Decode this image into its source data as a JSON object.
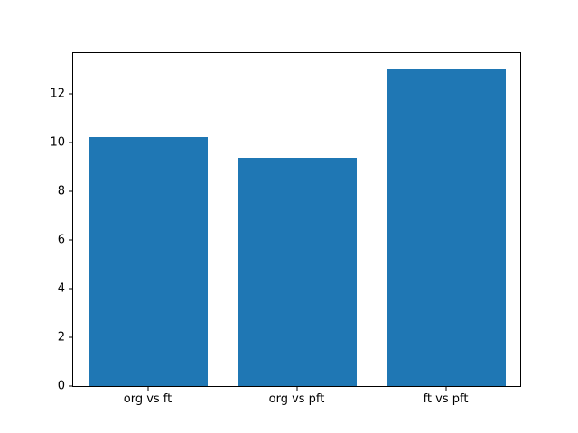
{
  "chart_data": {
    "type": "bar",
    "categories": [
      "org vs ft",
      "org vs pft",
      "ft vs pft"
    ],
    "values": [
      10.2,
      9.35,
      13.0
    ],
    "title": "",
    "xlabel": "",
    "ylabel": "",
    "ylim": [
      0,
      13.65
    ],
    "yticks": [
      0,
      2,
      4,
      6,
      8,
      10,
      12
    ],
    "bar_color": "#1f77b4",
    "bar_width_fraction": 0.8,
    "background": "#ffffff",
    "grid": false,
    "legend": null
  }
}
